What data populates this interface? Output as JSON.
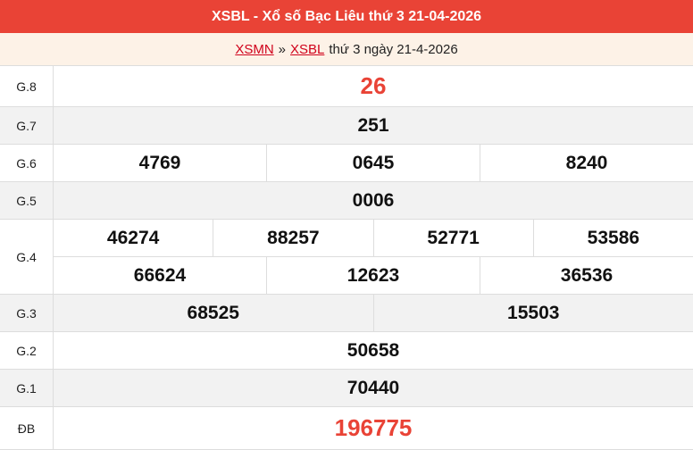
{
  "header": {
    "title": "XSBL - Xổ số Bạc Liêu thứ 3 21-04-2026"
  },
  "breadcrumb": {
    "link1": "XSMN",
    "separator": "»",
    "link2": "XSBL",
    "text": "thứ 3 ngày 21-4-2026"
  },
  "prizes": [
    {
      "label": "G.8",
      "rows": [
        [
          "26"
        ]
      ]
    },
    {
      "label": "G.7",
      "rows": [
        [
          "251"
        ]
      ]
    },
    {
      "label": "G.6",
      "rows": [
        [
          "4769",
          "0645",
          "8240"
        ]
      ]
    },
    {
      "label": "G.5",
      "rows": [
        [
          "0006"
        ]
      ]
    },
    {
      "label": "G.4",
      "rows": [
        [
          "46274",
          "88257",
          "52771",
          "53586"
        ],
        [
          "66624",
          "12623",
          "36536"
        ]
      ]
    },
    {
      "label": "G.3",
      "rows": [
        [
          "68525",
          "15503"
        ]
      ]
    },
    {
      "label": "G.2",
      "rows": [
        [
          "50658"
        ]
      ]
    },
    {
      "label": "G.1",
      "rows": [
        [
          "70440"
        ]
      ]
    },
    {
      "label": "ĐB",
      "rows": [
        [
          "196775"
        ]
      ]
    }
  ],
  "colors": {
    "accent": "#e94336",
    "subheader_bg": "#fdf2e7",
    "alt_row": "#f2f2f2"
  }
}
